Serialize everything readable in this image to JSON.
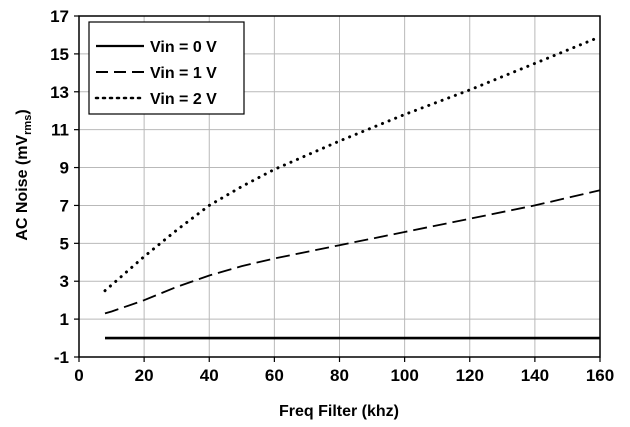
{
  "chart_data": {
    "type": "line",
    "xlabel": "Freq Filter (khz)",
    "ylabel_main": "AC Noise (mV",
    "ylabel_sub": "rms",
    "ylabel_close": ")",
    "xlim": [
      0,
      160
    ],
    "ylim": [
      -1,
      17
    ],
    "xticks": [
      "0",
      "20",
      "40",
      "60",
      "80",
      "100",
      "120",
      "140",
      "160"
    ],
    "yticks": [
      "-1",
      "1",
      "3",
      "5",
      "7",
      "9",
      "11",
      "13",
      "15",
      "17"
    ],
    "grid": true,
    "legend_position": "top-left",
    "series": [
      {
        "name": "Vin = 0 V",
        "style": "solid",
        "color": "#000000",
        "x": [
          8,
          10,
          20,
          40,
          60,
          80,
          100,
          120,
          140,
          160
        ],
        "y": [
          0.0,
          0.0,
          0.0,
          0.0,
          0.0,
          0.0,
          0.0,
          0.0,
          0.0,
          0.0
        ]
      },
      {
        "name": "Vin = 1 V",
        "style": "dashed",
        "color": "#000000",
        "x": [
          8,
          10,
          20,
          30,
          40,
          50,
          60,
          80,
          100,
          120,
          140,
          160
        ],
        "y": [
          1.3,
          1.4,
          2.0,
          2.7,
          3.3,
          3.8,
          4.2,
          4.9,
          5.6,
          6.3,
          7.0,
          7.8
        ]
      },
      {
        "name": "Vin = 2 V",
        "style": "dotted",
        "color": "#000000",
        "x": [
          8,
          10,
          20,
          30,
          40,
          50,
          60,
          80,
          100,
          120,
          140,
          160
        ],
        "y": [
          2.5,
          2.8,
          4.3,
          5.7,
          7.0,
          8.0,
          8.9,
          10.4,
          11.8,
          13.1,
          14.5,
          15.9
        ]
      }
    ]
  }
}
